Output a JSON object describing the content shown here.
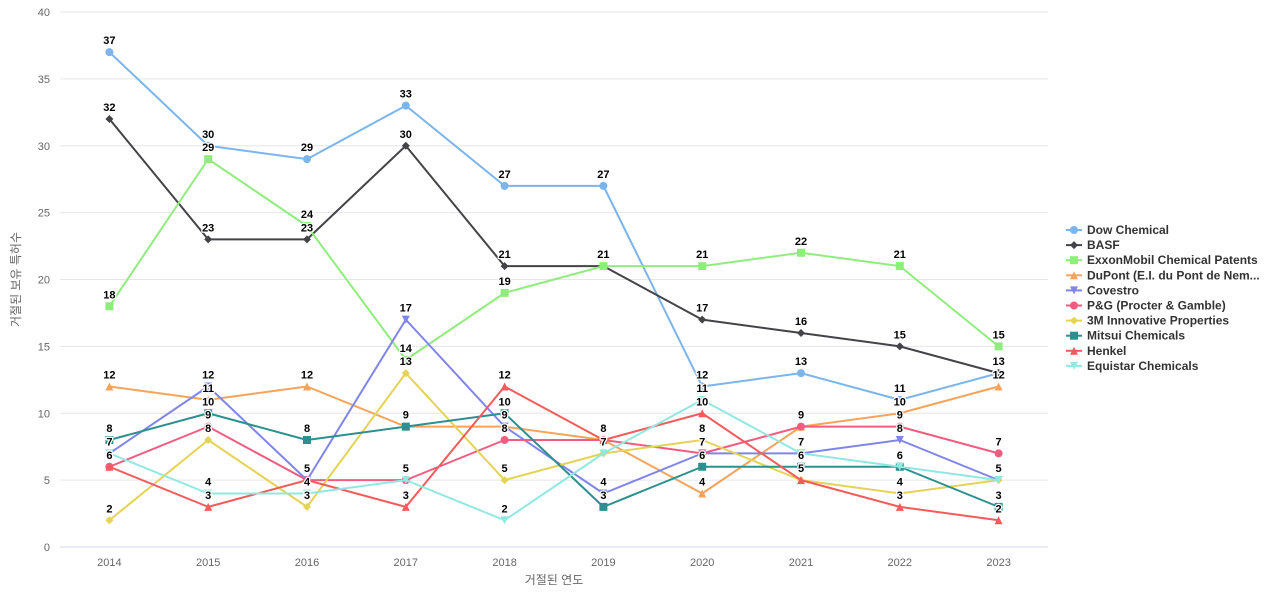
{
  "chart_data": {
    "type": "line",
    "title": "",
    "xlabel": "거절된 연도",
    "ylabel": "거절된 보유 특허수",
    "ylim": [
      0,
      40
    ],
    "yticks": [
      0,
      5,
      10,
      15,
      20,
      25,
      30,
      35,
      40
    ],
    "categories": [
      "2014",
      "2015",
      "2016",
      "2017",
      "2018",
      "2019",
      "2020",
      "2021",
      "2022",
      "2023"
    ],
    "grid": true,
    "grid_color": "#e6e6e6",
    "axis_line_color": "#ccd6eb",
    "tick_label_color": "#666666",
    "axis_title_color": "#666666",
    "data_label_color": "#000000",
    "legend_position": "right",
    "legend_text_color": "#333333",
    "data_labels_visible": true,
    "series": [
      {
        "name": "Dow Chemical",
        "color": "#7cb5ec",
        "marker": "circle",
        "values": [
          37,
          30,
          29,
          33,
          27,
          27,
          12,
          13,
          11,
          13
        ]
      },
      {
        "name": "BASF",
        "color": "#434348",
        "marker": "diamond",
        "values": [
          32,
          23,
          23,
          30,
          21,
          21,
          17,
          16,
          15,
          13
        ]
      },
      {
        "name": "ExxonMobil Chemical Patents",
        "color": "#90ed7d",
        "marker": "square",
        "values": [
          18,
          29,
          24,
          14,
          19,
          21,
          21,
          22,
          21,
          15
        ]
      },
      {
        "name": "DuPont (E.I. du Pont de Nem...",
        "color": "#f7a35c",
        "marker": "triangle",
        "values": [
          12,
          11,
          12,
          9,
          9,
          8,
          4,
          9,
          10,
          12
        ]
      },
      {
        "name": "Covestro",
        "color": "#8085e9",
        "marker": "triangle-down",
        "values": [
          7,
          12,
          5,
          17,
          9,
          4,
          7,
          7,
          8,
          5
        ]
      },
      {
        "name": "P&G (Procter & Gamble)",
        "color": "#f15c80",
        "marker": "circle",
        "values": [
          6,
          9,
          5,
          5,
          8,
          8,
          7,
          9,
          9,
          7
        ]
      },
      {
        "name": "3M Innovative Properties",
        "color": "#e4d354",
        "marker": "diamond",
        "values": [
          2,
          8,
          3,
          13,
          5,
          7,
          8,
          5,
          4,
          5
        ]
      },
      {
        "name": "Mitsui Chemicals",
        "color": "#2b908f",
        "marker": "square",
        "values": [
          8,
          10,
          8,
          9,
          10,
          3,
          6,
          6,
          6,
          3
        ]
      },
      {
        "name": "Henkel",
        "color": "#f45b5b",
        "marker": "triangle",
        "values": [
          6,
          3,
          5,
          3,
          12,
          8,
          10,
          5,
          3,
          2
        ]
      },
      {
        "name": "Equistar Chemicals",
        "color": "#91e8e1",
        "marker": "triangle-down",
        "values": [
          7,
          4,
          4,
          5,
          2,
          7,
          11,
          7,
          6,
          5
        ]
      }
    ]
  }
}
